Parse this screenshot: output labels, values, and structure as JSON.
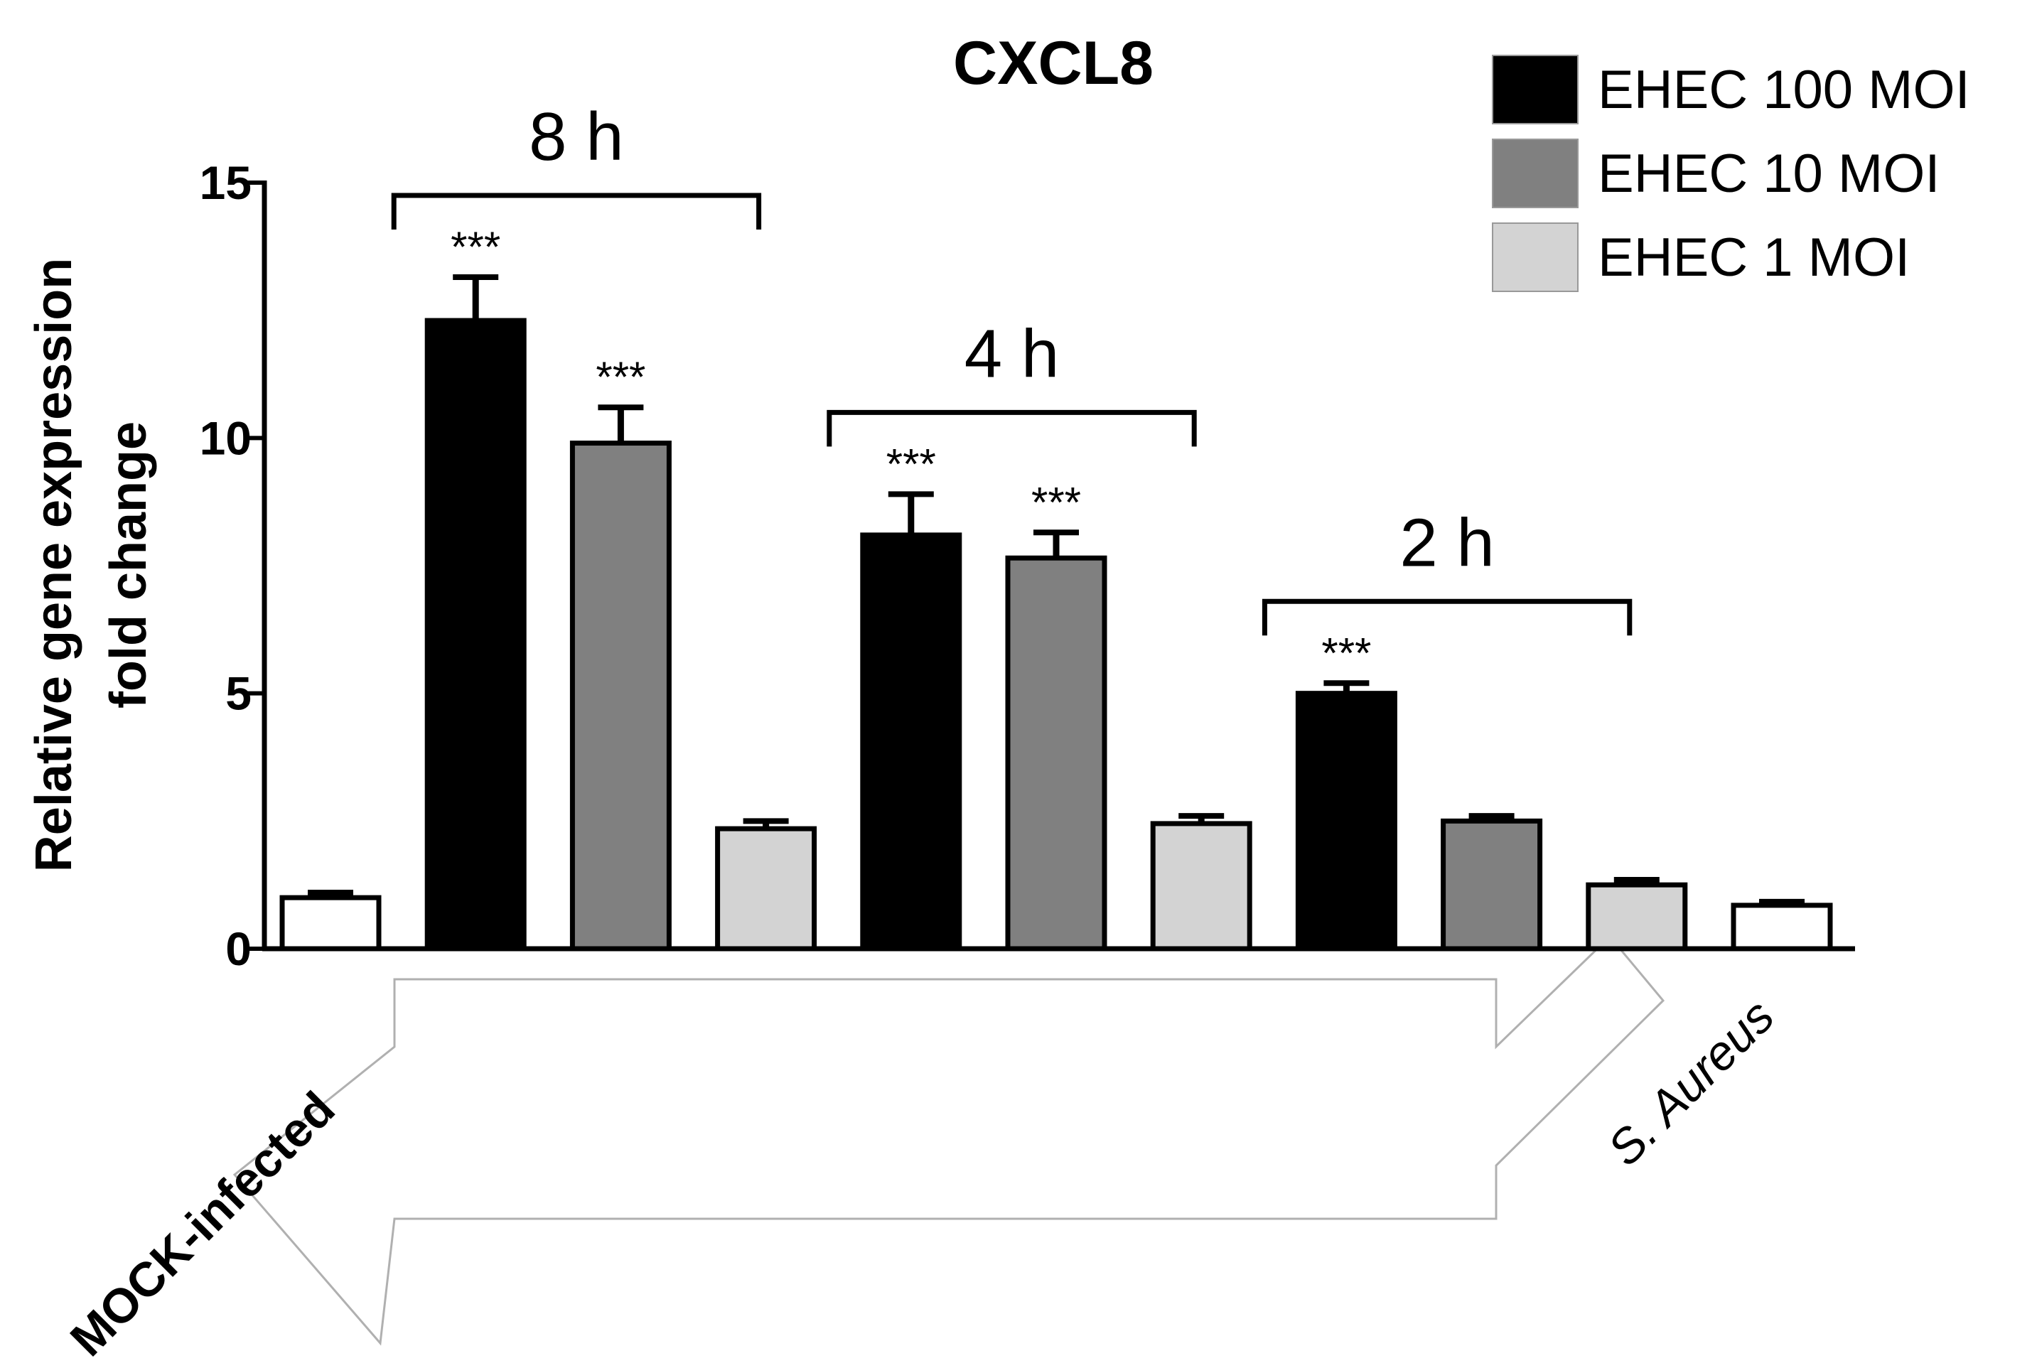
{
  "chart_data": {
    "type": "bar",
    "title": "CXCL8",
    "ylabel_line1": "Relative gene expression",
    "ylabel_line2": "fold change",
    "ylim": [
      0,
      15
    ],
    "yticks": [
      "0",
      "5",
      "10",
      "15"
    ],
    "grid": false,
    "legend_placement": "top-right",
    "legend": [
      {
        "label": "EHEC 100 MOI",
        "color": "#000000"
      },
      {
        "label": "EHEC 10 MOI",
        "color": "#808080"
      },
      {
        "label": "EHEC 1 MOI",
        "color": "#d3d3d3"
      }
    ],
    "bars": [
      {
        "label": "MOCK-infected",
        "value": 1.0,
        "error": 0.1,
        "color": "#ffffff",
        "sig": ""
      },
      {
        "label": "",
        "value": 12.3,
        "error": 0.85,
        "color": "#000000",
        "sig": "***"
      },
      {
        "label": "",
        "value": 9.9,
        "error": 0.7,
        "color": "#808080",
        "sig": "***"
      },
      {
        "label": "",
        "value": 2.35,
        "error": 0.15,
        "color": "#d3d3d3",
        "sig": ""
      },
      {
        "label": "",
        "value": 8.1,
        "error": 0.8,
        "color": "#000000",
        "sig": "***"
      },
      {
        "label": "",
        "value": 7.65,
        "error": 0.5,
        "color": "#808080",
        "sig": "***"
      },
      {
        "label": "",
        "value": 2.45,
        "error": 0.15,
        "color": "#d3d3d3",
        "sig": ""
      },
      {
        "label": "",
        "value": 5.0,
        "error": 0.2,
        "color": "#000000",
        "sig": "***"
      },
      {
        "label": "",
        "value": 2.5,
        "error": 0.1,
        "color": "#808080",
        "sig": ""
      },
      {
        "label": "",
        "value": 1.25,
        "error": 0.1,
        "color": "#d3d3d3",
        "sig": ""
      },
      {
        "label": "S. Aureus",
        "value": 0.85,
        "error": 0.07,
        "color": "#ffffff",
        "sig": ""
      }
    ],
    "groups": [
      {
        "label": "8 h",
        "first_bar": 1,
        "last_bar": 3
      },
      {
        "label": "4 h",
        "first_bar": 4,
        "last_bar": 6
      },
      {
        "label": "2 h",
        "first_bar": 7,
        "last_bar": 9
      }
    ],
    "category_labels": [
      "MOCK-infected",
      "S. Aureus"
    ]
  }
}
